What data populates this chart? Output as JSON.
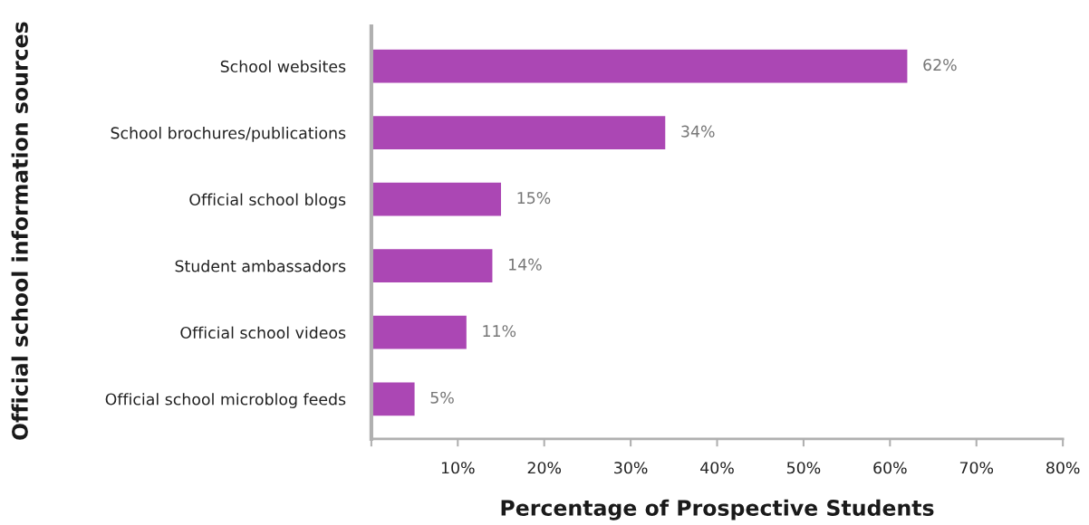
{
  "chart_data": {
    "type": "bar",
    "orientation": "horizontal",
    "xlabel": "Percentage of Prospective Students",
    "ylabel": "Official school information sources",
    "categories": [
      "School websites",
      "School brochures/publications",
      "Official school blogs",
      "Student ambassadors",
      "Official school videos",
      "Official school microblog feeds"
    ],
    "values": [
      62,
      34,
      15,
      14,
      11,
      5
    ],
    "value_labels": [
      "62%",
      "34%",
      "15%",
      "14%",
      "11%",
      "5%"
    ],
    "color": "#ab47b4",
    "xlim": [
      0,
      80
    ],
    "xticks": [
      {
        "value": 0,
        "label": null
      },
      {
        "value": 10,
        "label": "10%"
      },
      {
        "value": 20,
        "label": "20%"
      },
      {
        "value": 30,
        "label": "30%"
      },
      {
        "value": 40,
        "label": "40%"
      },
      {
        "value": 50,
        "label": "50%"
      },
      {
        "value": 60,
        "label": "60%"
      },
      {
        "value": 70,
        "label": "70%"
      },
      {
        "value": 80,
        "label": "80%"
      }
    ],
    "grid": false,
    "legend": false
  }
}
